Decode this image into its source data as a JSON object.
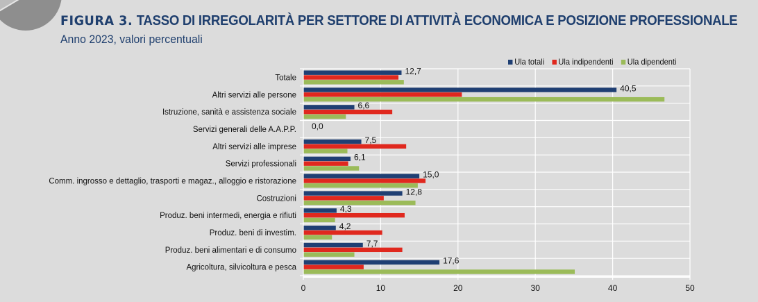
{
  "header": {
    "figure_label": "FIGURA 3.",
    "title": "TASSO DI IRREGOLARITÀ PER SETTORE DI ATTIVITÀ ECONOMICA E POSIZIONE PROFESSIONALE",
    "subtitle": "Anno 2023, valori percentuali"
  },
  "colors": {
    "title": "#1f3f6e",
    "ula_totali": "#1f3f73",
    "ula_indipendenti": "#e0281e",
    "ula_dipendenti": "#9bbb59",
    "background": "#dcdcdc",
    "grid": "#ffffff"
  },
  "chart_data": {
    "type": "bar",
    "orientation": "horizontal",
    "title": "TASSO DI IRREGOLARITÀ PER SETTORE DI ATTIVITÀ ECONOMICA E POSIZIONE PROFESSIONALE",
    "subtitle": "Anno 2023, valori percentuali",
    "xlabel": "",
    "ylabel": "",
    "xlim": [
      0,
      50
    ],
    "xticks": [
      0,
      10,
      20,
      30,
      40,
      50
    ],
    "grid": true,
    "legend_position": "top-right",
    "categories": [
      "Totale",
      "Altri servizi alle persone",
      "Istruzione, sanità e assistenza sociale",
      "Servizi generali delle A.A.P.P.",
      "Altri servizi alle imprese",
      "Servizi professionali",
      "Comm. ingrosso e dettaglio, trasporti e magaz., alloggio e ristorazione",
      "Costruzioni",
      "Produz. beni intermedi, energia e rifiuti",
      "Produz. beni di investim.",
      "Produz. beni alimentari e di consumo",
      "Agricoltura, silvicoltura e pesca"
    ],
    "series": [
      {
        "name": "Ula totali",
        "color": "#1f3f73",
        "values": [
          12.7,
          40.5,
          6.6,
          0.0,
          7.5,
          6.1,
          15.0,
          12.8,
          4.3,
          4.2,
          7.7,
          17.6
        ],
        "labeled": true
      },
      {
        "name": "Ula indipendenti",
        "color": "#e0281e",
        "values": [
          12.3,
          20.5,
          11.5,
          0.0,
          13.3,
          5.8,
          15.8,
          10.4,
          13.1,
          10.2,
          12.8,
          7.8
        ],
        "labeled": false
      },
      {
        "name": "Ula dipendenti",
        "color": "#9bbb59",
        "values": [
          13.0,
          46.7,
          5.5,
          0.0,
          5.7,
          7.2,
          14.8,
          14.5,
          4.1,
          3.7,
          6.6,
          35.1
        ],
        "labeled": false
      }
    ],
    "data_labels": [
      "12,7",
      "40,5",
      "6,6",
      "0,0",
      "7,5",
      "6,1",
      "15,0",
      "12,8",
      "4,3",
      "4,2",
      "7,7",
      "17,6"
    ]
  }
}
